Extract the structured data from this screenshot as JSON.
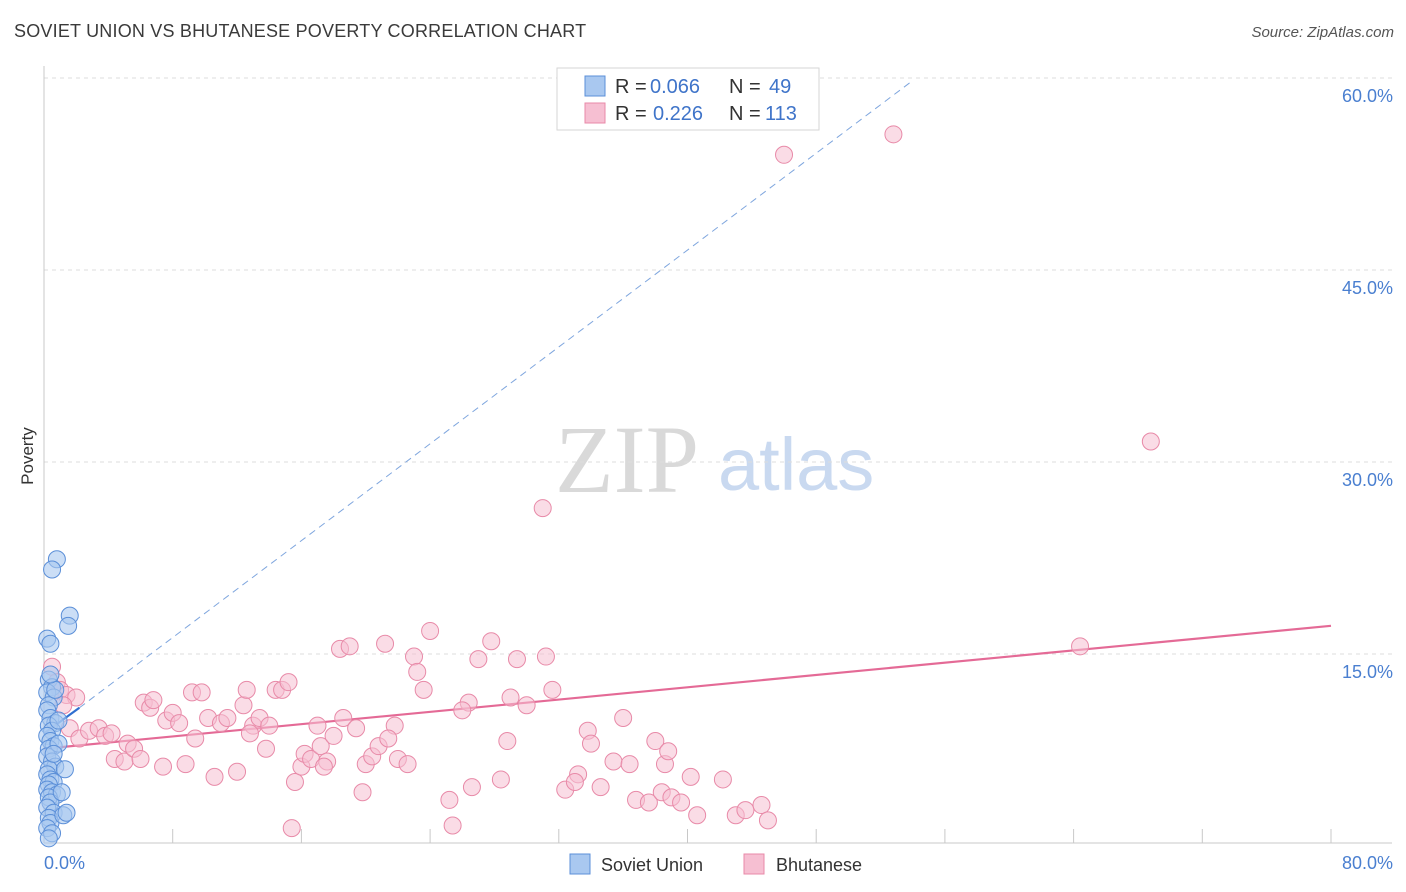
{
  "title": "SOVIET UNION VS BHUTANESE POVERTY CORRELATION CHART",
  "source": "Source: ZipAtlas.com",
  "watermark": {
    "zip": "ZIP",
    "atlas": "atlas"
  },
  "colors": {
    "soviet_fill": "#a9c8f0",
    "soviet_stroke": "#5b8fd8",
    "soviet_line": "#2f6fd0",
    "bhutan_fill": "#f6bfd2",
    "bhutan_stroke": "#e88aa8",
    "bhutan_line": "#e46a96",
    "tick": "#4a7fd0",
    "grid": "#dddddd"
  },
  "legend": {
    "items": [
      {
        "r_label": "R = ",
        "r_value": "0.066",
        "n_label": "N = ",
        "n_value": "49"
      },
      {
        "r_label": "R = ",
        "r_value": "0.226",
        "n_label": "N = ",
        "n_value": "113"
      }
    ]
  },
  "chart_data": {
    "type": "scatter",
    "title": "SOVIET UNION VS BHUTANESE POVERTY CORRELATION CHART",
    "xlabel": "",
    "ylabel": "Poverty",
    "xlim": [
      0,
      80
    ],
    "ylim": [
      0,
      62
    ],
    "y_ticks": [
      {
        "value": 15,
        "label": "15.0%"
      },
      {
        "value": 30,
        "label": "30.0%"
      },
      {
        "value": 45,
        "label": "45.0%"
      },
      {
        "value": 60,
        "label": "60.0%"
      }
    ],
    "x_ticks": [
      {
        "value": 0,
        "label": "0.0%"
      },
      {
        "value": 80,
        "label": "80.0%"
      }
    ],
    "x_minor_ticks": [
      8,
      16,
      24,
      32,
      40,
      48,
      56,
      64,
      72,
      80
    ],
    "grid": true,
    "series": [
      {
        "name": "Soviet Union",
        "r": 0.066,
        "n": 49,
        "trend_solid": {
          "x": [
            0,
            2.2
          ],
          "y": [
            8.8,
            10.8
          ]
        },
        "trend_dashed": {
          "x": [
            2.2,
            54
          ],
          "y": [
            10.8,
            59.8
          ]
        },
        "points": [
          [
            0.2,
            16.2
          ],
          [
            0.4,
            15.8
          ],
          [
            0.3,
            13.0
          ],
          [
            0.5,
            12.4
          ],
          [
            0.2,
            12.0
          ],
          [
            0.6,
            11.6
          ],
          [
            0.3,
            11.0
          ],
          [
            0.2,
            10.6
          ],
          [
            0.4,
            10.0
          ],
          [
            0.7,
            9.6
          ],
          [
            0.3,
            9.4
          ],
          [
            0.5,
            9.0
          ],
          [
            0.2,
            8.6
          ],
          [
            0.4,
            8.2
          ],
          [
            0.6,
            7.8
          ],
          [
            0.3,
            7.6
          ],
          [
            0.2,
            7.0
          ],
          [
            0.5,
            6.6
          ],
          [
            0.7,
            6.2
          ],
          [
            0.3,
            6.0
          ],
          [
            0.2,
            5.6
          ],
          [
            0.4,
            5.2
          ],
          [
            0.6,
            5.0
          ],
          [
            0.3,
            4.8
          ],
          [
            0.2,
            4.4
          ],
          [
            0.5,
            4.2
          ],
          [
            0.8,
            4.0
          ],
          [
            0.3,
            3.8
          ],
          [
            0.4,
            3.4
          ],
          [
            0.2,
            3.0
          ],
          [
            0.6,
            2.6
          ],
          [
            0.3,
            2.2
          ],
          [
            0.4,
            1.8
          ],
          [
            0.2,
            1.4
          ],
          [
            0.5,
            1.0
          ],
          [
            0.3,
            0.6
          ],
          [
            0.8,
            22.4
          ],
          [
            0.5,
            21.6
          ],
          [
            1.6,
            18.0
          ],
          [
            1.5,
            17.2
          ],
          [
            1.1,
            4.2
          ],
          [
            1.2,
            2.4
          ],
          [
            1.4,
            2.6
          ],
          [
            1.3,
            6.0
          ],
          [
            0.9,
            9.8
          ],
          [
            0.7,
            12.2
          ],
          [
            0.4,
            13.4
          ],
          [
            0.9,
            8.0
          ],
          [
            0.6,
            7.2
          ]
        ]
      },
      {
        "name": "Bhutanese",
        "r": 0.226,
        "n": 113,
        "trend": {
          "x": [
            0,
            80
          ],
          "y": [
            7.6,
            17.2
          ]
        },
        "points": [
          [
            0.5,
            14.0
          ],
          [
            0.8,
            12.8
          ],
          [
            1.0,
            12.2
          ],
          [
            1.4,
            11.8
          ],
          [
            2.0,
            11.6
          ],
          [
            1.2,
            11.0
          ],
          [
            1.6,
            9.2
          ],
          [
            2.2,
            8.4
          ],
          [
            2.8,
            9.0
          ],
          [
            3.4,
            9.2
          ],
          [
            3.8,
            8.6
          ],
          [
            4.2,
            8.8
          ],
          [
            4.4,
            6.8
          ],
          [
            5.0,
            6.6
          ],
          [
            5.2,
            8.0
          ],
          [
            5.6,
            7.6
          ],
          [
            6.0,
            6.8
          ],
          [
            6.2,
            11.2
          ],
          [
            6.6,
            10.8
          ],
          [
            6.8,
            11.4
          ],
          [
            7.4,
            6.2
          ],
          [
            7.6,
            9.8
          ],
          [
            8.0,
            10.4
          ],
          [
            8.4,
            9.6
          ],
          [
            8.8,
            6.4
          ],
          [
            9.2,
            12.0
          ],
          [
            9.4,
            8.4
          ],
          [
            9.8,
            12.0
          ],
          [
            10.2,
            10.0
          ],
          [
            10.6,
            5.4
          ],
          [
            11.0,
            9.6
          ],
          [
            11.4,
            10.0
          ],
          [
            12.0,
            5.8
          ],
          [
            12.4,
            11.0
          ],
          [
            12.6,
            12.2
          ],
          [
            13.0,
            9.4
          ],
          [
            13.4,
            10.0
          ],
          [
            13.8,
            7.6
          ],
          [
            14.0,
            9.4
          ],
          [
            14.4,
            12.2
          ],
          [
            14.8,
            12.2
          ],
          [
            15.2,
            12.8
          ],
          [
            15.4,
            1.4
          ],
          [
            15.6,
            5.0
          ],
          [
            16.0,
            6.2
          ],
          [
            16.2,
            7.2
          ],
          [
            16.6,
            6.8
          ],
          [
            17.0,
            9.4
          ],
          [
            17.2,
            7.8
          ],
          [
            17.6,
            6.6
          ],
          [
            18.0,
            8.6
          ],
          [
            18.4,
            15.4
          ],
          [
            18.6,
            10.0
          ],
          [
            19.0,
            15.6
          ],
          [
            19.4,
            9.2
          ],
          [
            19.8,
            4.2
          ],
          [
            20.0,
            6.4
          ],
          [
            20.4,
            7.0
          ],
          [
            20.8,
            7.8
          ],
          [
            21.2,
            15.8
          ],
          [
            21.8,
            9.4
          ],
          [
            22.0,
            6.8
          ],
          [
            22.6,
            6.4
          ],
          [
            23.0,
            14.8
          ],
          [
            23.2,
            13.6
          ],
          [
            23.6,
            12.2
          ],
          [
            24.0,
            16.8
          ],
          [
            25.2,
            3.6
          ],
          [
            25.4,
            1.6
          ],
          [
            26.4,
            11.2
          ],
          [
            26.6,
            4.6
          ],
          [
            27.0,
            14.6
          ],
          [
            27.8,
            16.0
          ],
          [
            28.4,
            5.2
          ],
          [
            29.0,
            11.6
          ],
          [
            29.4,
            14.6
          ],
          [
            30.0,
            11.0
          ],
          [
            31.0,
            26.4
          ],
          [
            31.2,
            14.8
          ],
          [
            31.6,
            12.2
          ],
          [
            32.4,
            4.4
          ],
          [
            33.2,
            5.6
          ],
          [
            33.8,
            9.0
          ],
          [
            34.0,
            8.0
          ],
          [
            34.6,
            4.6
          ],
          [
            35.4,
            6.6
          ],
          [
            36.0,
            10.0
          ],
          [
            36.4,
            6.4
          ],
          [
            36.8,
            3.6
          ],
          [
            37.6,
            3.4
          ],
          [
            38.0,
            8.2
          ],
          [
            38.4,
            4.2
          ],
          [
            38.6,
            6.4
          ],
          [
            38.8,
            7.4
          ],
          [
            39.0,
            3.8
          ],
          [
            39.6,
            3.4
          ],
          [
            40.2,
            5.4
          ],
          [
            40.6,
            2.4
          ],
          [
            42.2,
            5.2
          ],
          [
            43.0,
            2.4
          ],
          [
            43.6,
            2.8
          ],
          [
            46.0,
            54.0
          ],
          [
            52.8,
            55.6
          ],
          [
            68.8,
            31.6
          ],
          [
            64.4,
            15.6
          ],
          [
            44.6,
            3.2
          ],
          [
            45.0,
            2.0
          ],
          [
            33.0,
            5.0
          ],
          [
            28.8,
            8.2
          ],
          [
            17.4,
            6.2
          ],
          [
            21.4,
            8.4
          ],
          [
            26.0,
            10.6
          ],
          [
            12.8,
            8.8
          ]
        ]
      }
    ]
  }
}
